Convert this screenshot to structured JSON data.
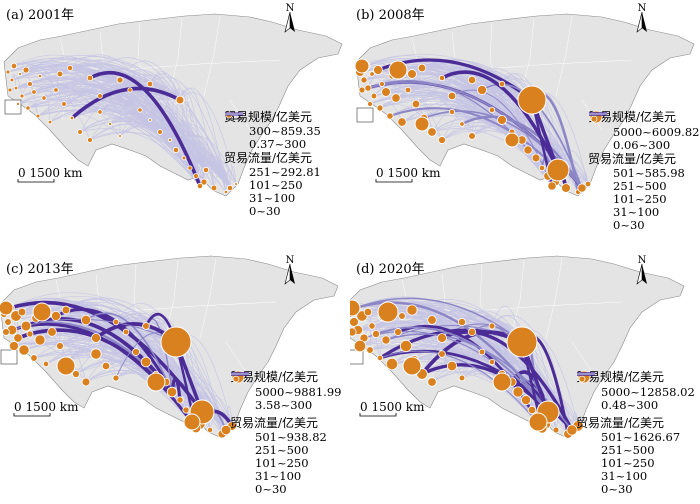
{
  "colors": {
    "land": "#e4e4e4",
    "border": "#8a8a8a",
    "flow_light": "#c5c4e4",
    "flow_mid": "#8c86c6",
    "flow_dark": "#4b2c97",
    "node": "#d9801f",
    "node_stroke": "#ffffff"
  },
  "north_label": "N",
  "panels": [
    {
      "title": "(a) 2001年",
      "scale_label": "0 1500 km",
      "scale_title": "贸易规模/亿美元",
      "scale_classes": [
        "300~859.35",
        "0.37~300"
      ],
      "flow_title": "贸易流量/亿美元",
      "flow_classes": [
        "251~292.81",
        "101~250",
        "31~100",
        "0~30"
      ]
    },
    {
      "title": "(b) 2008年",
      "scale_label": "0 1500 km",
      "scale_title": "贸易规模/亿美元",
      "scale_classes": [
        "5000~6009.82",
        "0.06~300"
      ],
      "flow_title": "贸易流量/亿美元",
      "flow_classes": [
        "501~585.98",
        "251~500",
        "101~250",
        "31~100",
        "0~30"
      ]
    },
    {
      "title": "(c) 2013年",
      "scale_label": "0 1500 km",
      "scale_title": "贸易规模/亿美元",
      "scale_classes": [
        "5000~9881.99",
        "3.58~300"
      ],
      "flow_title": "贸易流量/亿美元",
      "flow_classes": [
        "501~938.82",
        "251~500",
        "101~250",
        "31~100",
        "0~30"
      ]
    },
    {
      "title": "(d) 2020年",
      "scale_label": "0 1500 km",
      "scale_title": "贸易规模/亿美元",
      "scale_classes": [
        "5000~12858.02",
        "0.48~300"
      ],
      "flow_title": "贸易流量/亿美元",
      "flow_classes": [
        "501~1626.67",
        "251~500",
        "101~250",
        "31~100",
        "0~30"
      ]
    }
  ]
}
